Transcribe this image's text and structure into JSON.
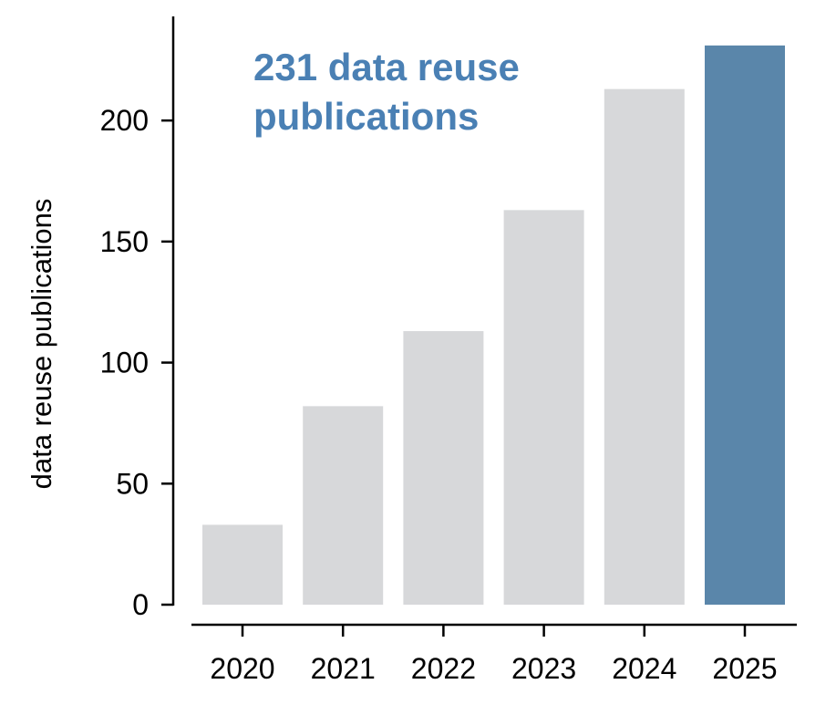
{
  "chart_data": {
    "type": "bar",
    "categories": [
      "2020",
      "2021",
      "2022",
      "2023",
      "2024",
      "2025"
    ],
    "values": [
      33,
      82,
      113,
      163,
      213,
      231
    ],
    "highlight_index": 5,
    "xlabel": "",
    "ylabel": "data reuse publications",
    "ylim": [
      0,
      243
    ],
    "yticks": [
      0,
      50,
      100,
      150,
      200
    ],
    "annotation": {
      "lines": [
        "231 data reuse",
        "publications"
      ]
    },
    "grid": false,
    "legend": "none",
    "colors": {
      "bar": "#d7d8da",
      "highlight_bar": "#5a86aa",
      "annotation": "#4a80b4",
      "axis": "#000000"
    }
  }
}
